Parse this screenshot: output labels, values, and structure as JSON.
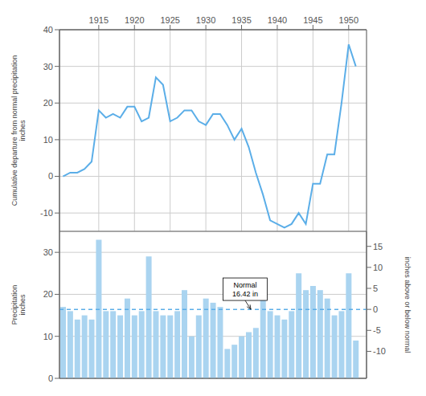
{
  "chart_data": [
    {
      "type": "line",
      "x": [
        1910,
        1911,
        1912,
        1913,
        1914,
        1915,
        1916,
        1917,
        1918,
        1919,
        1920,
        1921,
        1922,
        1923,
        1924,
        1925,
        1926,
        1927,
        1928,
        1929,
        1930,
        1931,
        1932,
        1933,
        1934,
        1935,
        1936,
        1937,
        1938,
        1939,
        1940,
        1941,
        1942,
        1943,
        1944,
        1945,
        1946,
        1947,
        1948,
        1949,
        1950,
        1951
      ],
      "values": [
        0,
        1,
        1,
        2,
        4,
        18,
        16,
        17,
        16,
        19,
        19,
        15,
        16,
        27,
        25,
        15,
        16,
        18,
        18,
        15,
        14,
        17,
        17,
        14,
        10,
        13,
        8,
        1,
        -5,
        -12,
        -13,
        -14,
        -13,
        -10,
        -13,
        -2,
        -2,
        6,
        6,
        20,
        36,
        30
      ],
      "color": "#5baee8",
      "xlim": [
        1909.5,
        1952.5
      ],
      "xticks": [
        1915,
        1920,
        1925,
        1930,
        1935,
        1940,
        1945,
        1950
      ],
      "ylim": [
        -15,
        40
      ],
      "yticks": [
        -10,
        0,
        10,
        20,
        30,
        40
      ],
      "y_label": "Cumulative departure from normal precipitation\ninches",
      "grid": true
    },
    {
      "type": "bar",
      "x": [
        1910,
        1911,
        1912,
        1913,
        1914,
        1915,
        1916,
        1917,
        1918,
        1919,
        1920,
        1921,
        1922,
        1923,
        1924,
        1925,
        1926,
        1927,
        1928,
        1929,
        1930,
        1931,
        1932,
        1933,
        1934,
        1935,
        1936,
        1937,
        1938,
        1939,
        1940,
        1941,
        1942,
        1943,
        1944,
        1945,
        1946,
        1947,
        1948,
        1949,
        1950,
        1951
      ],
      "values": [
        17,
        16,
        14,
        15,
        14,
        33,
        16,
        16,
        15,
        19,
        15,
        16,
        29,
        16,
        15,
        15,
        16,
        21,
        10,
        15,
        19,
        18,
        17,
        7,
        8,
        10,
        11,
        12,
        19,
        16,
        15,
        14,
        16,
        25,
        21,
        22,
        21,
        19,
        15,
        16,
        25,
        9
      ],
      "color": "#aad4f0",
      "xlim": [
        1909.5,
        1952.5
      ],
      "xticks": [
        1915,
        1920,
        1925,
        1930,
        1935,
        1940,
        1945,
        1950
      ],
      "ylim": [
        0,
        35
      ],
      "yticks": [
        0,
        10,
        20,
        30
      ],
      "y_label": "Precipitation\ninches",
      "y2lim": [
        -16.42,
        18.58
      ],
      "y2ticks": [
        -10,
        -5,
        0,
        5,
        10,
        15
      ],
      "y2_label": "inches above or below normal",
      "normal": 16.42,
      "annotations": [
        {
          "text": "Normal\n16.42 in",
          "x": 1935.5,
          "y": 19.5,
          "arrow_x": 1936.3,
          "arrow_y": 16.42
        }
      ],
      "grid": true,
      "tick_labels": "y"
    }
  ]
}
